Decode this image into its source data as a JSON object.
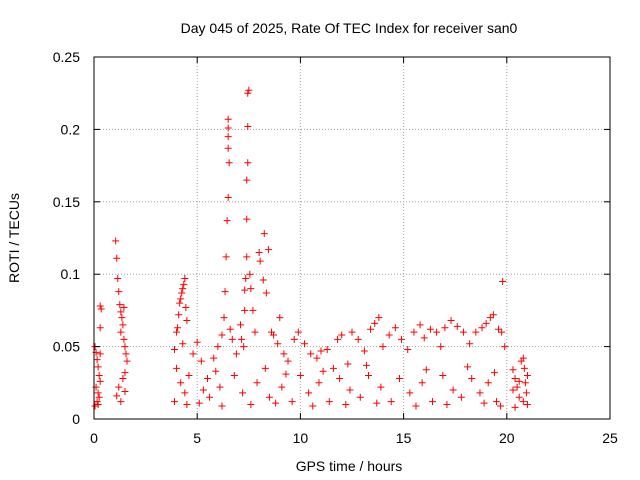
{
  "chart_data": {
    "type": "scatter",
    "title": "Day 045 of 2025, Rate Of TEC Index for receiver san0",
    "xlabel": "GPS time / hours",
    "ylabel": "ROTI / TECUs",
    "xlim": [
      0,
      25
    ],
    "ylim": [
      0,
      0.25
    ],
    "x_ticks": [
      0,
      5,
      10,
      15,
      20,
      25
    ],
    "y_ticks": [
      0,
      0.05,
      0.1,
      0.15,
      0.2,
      0.25
    ],
    "x_tick_labels": [
      "0",
      "5",
      "10",
      "15",
      "20",
      "25"
    ],
    "y_tick_labels": [
      "0",
      "0.05",
      "0.1",
      "0.15",
      "0.2",
      "0.25"
    ],
    "grid": true,
    "marker": "plus",
    "color": "#ff0000",
    "series": [
      {
        "points": [
          [
            0.05,
            0.05
          ],
          [
            0.1,
            0.046
          ],
          [
            0.15,
            0.041
          ],
          [
            0.2,
            0.036
          ],
          [
            0.25,
            0.03
          ],
          [
            0.1,
            0.022
          ],
          [
            0.2,
            0.018
          ],
          [
            0.15,
            0.012
          ],
          [
            0.05,
            0.009
          ],
          [
            0.25,
            0.015
          ],
          [
            0.3,
            0.078
          ],
          [
            0.35,
            0.076
          ],
          [
            0.3,
            0.063
          ],
          [
            0.3,
            0.045
          ],
          [
            0.3,
            0.026
          ],
          [
            0.2,
            0.01
          ],
          [
            1.05,
            0.123
          ],
          [
            1.1,
            0.111
          ],
          [
            1.15,
            0.097
          ],
          [
            1.2,
            0.088
          ],
          [
            1.25,
            0.079
          ],
          [
            1.3,
            0.074
          ],
          [
            1.35,
            0.07
          ],
          [
            1.4,
            0.065
          ],
          [
            1.45,
            0.077
          ],
          [
            1.3,
            0.06
          ],
          [
            1.45,
            0.055
          ],
          [
            1.5,
            0.05
          ],
          [
            1.55,
            0.045
          ],
          [
            1.6,
            0.04
          ],
          [
            1.5,
            0.032
          ],
          [
            1.4,
            0.028
          ],
          [
            1.2,
            0.022
          ],
          [
            1.1,
            0.016
          ],
          [
            1.3,
            0.012
          ],
          [
            1.5,
            0.019
          ],
          [
            3.9,
            0.048
          ],
          [
            4.0,
            0.06
          ],
          [
            4.05,
            0.063
          ],
          [
            4.1,
            0.072
          ],
          [
            4.15,
            0.08
          ],
          [
            4.2,
            0.083
          ],
          [
            4.25,
            0.087
          ],
          [
            4.3,
            0.09
          ],
          [
            4.35,
            0.093
          ],
          [
            4.4,
            0.097
          ],
          [
            4.45,
            0.077
          ],
          [
            4.5,
            0.068
          ],
          [
            4.3,
            0.052
          ],
          [
            4.0,
            0.035
          ],
          [
            4.2,
            0.025
          ],
          [
            4.4,
            0.018
          ],
          [
            3.9,
            0.012
          ],
          [
            4.6,
            0.03
          ],
          [
            4.8,
            0.045
          ],
          [
            5.0,
            0.053
          ],
          [
            5.2,
            0.04
          ],
          [
            5.5,
            0.028
          ],
          [
            5.8,
            0.042
          ],
          [
            6.0,
            0.05
          ],
          [
            6.2,
            0.058
          ],
          [
            6.3,
            0.07
          ],
          [
            6.35,
            0.088
          ],
          [
            6.4,
            0.112
          ],
          [
            6.45,
            0.137
          ],
          [
            6.5,
            0.153
          ],
          [
            6.55,
            0.177
          ],
          [
            6.5,
            0.187
          ],
          [
            6.5,
            0.195
          ],
          [
            6.5,
            0.201
          ],
          [
            6.5,
            0.207
          ],
          [
            6.6,
            0.062
          ],
          [
            6.7,
            0.055
          ],
          [
            6.9,
            0.045
          ],
          [
            7.1,
            0.065
          ],
          [
            7.15,
            0.055
          ],
          [
            7.25,
            0.05
          ],
          [
            7.3,
            0.075
          ],
          [
            7.3,
            0.089
          ],
          [
            7.35,
            0.097
          ],
          [
            7.4,
            0.112
          ],
          [
            7.4,
            0.138
          ],
          [
            7.4,
            0.165
          ],
          [
            7.45,
            0.177
          ],
          [
            7.45,
            0.202
          ],
          [
            7.45,
            0.225
          ],
          [
            7.5,
            0.227
          ],
          [
            7.55,
            0.1
          ],
          [
            7.6,
            0.09
          ],
          [
            7.7,
            0.075
          ],
          [
            7.8,
            0.06
          ],
          [
            8.0,
            0.115
          ],
          [
            8.05,
            0.109
          ],
          [
            8.2,
            0.096
          ],
          [
            8.25,
            0.128
          ],
          [
            8.35,
            0.087
          ],
          [
            8.45,
            0.117
          ],
          [
            8.6,
            0.06
          ],
          [
            8.7,
            0.058
          ],
          [
            8.9,
            0.052
          ],
          [
            9.0,
            0.07
          ],
          [
            9.2,
            0.045
          ],
          [
            9.4,
            0.04
          ],
          [
            9.7,
            0.055
          ],
          [
            9.9,
            0.06
          ],
          [
            10.2,
            0.052
          ],
          [
            10.5,
            0.045
          ],
          [
            10.8,
            0.042
          ],
          [
            11.0,
            0.047
          ],
          [
            11.3,
            0.048
          ],
          [
            11.6,
            0.035
          ],
          [
            11.8,
            0.055
          ],
          [
            12.0,
            0.058
          ],
          [
            12.3,
            0.038
          ],
          [
            12.5,
            0.06
          ],
          [
            12.8,
            0.055
          ],
          [
            13.1,
            0.047
          ],
          [
            13.4,
            0.062
          ],
          [
            13.6,
            0.066
          ],
          [
            13.8,
            0.07
          ],
          [
            14.0,
            0.05
          ],
          [
            14.3,
            0.058
          ],
          [
            14.6,
            0.063
          ],
          [
            14.9,
            0.055
          ],
          [
            15.2,
            0.048
          ],
          [
            15.5,
            0.06
          ],
          [
            15.8,
            0.065
          ],
          [
            16.0,
            0.056
          ],
          [
            16.3,
            0.062
          ],
          [
            16.6,
            0.06
          ],
          [
            16.8,
            0.05
          ],
          [
            17.0,
            0.063
          ],
          [
            17.3,
            0.068
          ],
          [
            17.6,
            0.064
          ],
          [
            17.9,
            0.06
          ],
          [
            18.2,
            0.052
          ],
          [
            18.5,
            0.06
          ],
          [
            18.8,
            0.063
          ],
          [
            19.0,
            0.066
          ],
          [
            19.2,
            0.07
          ],
          [
            19.35,
            0.072
          ],
          [
            19.6,
            0.062
          ],
          [
            19.75,
            0.06
          ],
          [
            19.8,
            0.095
          ],
          [
            19.9,
            0.05
          ],
          [
            5.3,
            0.02
          ],
          [
            5.6,
            0.015
          ],
          [
            6.1,
            0.022
          ],
          [
            6.8,
            0.03
          ],
          [
            7.2,
            0.018
          ],
          [
            7.9,
            0.025
          ],
          [
            8.5,
            0.015
          ],
          [
            9.1,
            0.022
          ],
          [
            9.6,
            0.012
          ],
          [
            10.0,
            0.03
          ],
          [
            10.4,
            0.018
          ],
          [
            10.9,
            0.025
          ],
          [
            11.4,
            0.012
          ],
          [
            11.9,
            0.028
          ],
          [
            12.4,
            0.02
          ],
          [
            12.9,
            0.015
          ],
          [
            13.3,
            0.03
          ],
          [
            13.9,
            0.022
          ],
          [
            14.4,
            0.012
          ],
          [
            14.8,
            0.028
          ],
          [
            15.3,
            0.018
          ],
          [
            15.9,
            0.025
          ],
          [
            16.4,
            0.012
          ],
          [
            16.9,
            0.03
          ],
          [
            17.4,
            0.02
          ],
          [
            17.8,
            0.015
          ],
          [
            18.3,
            0.028
          ],
          [
            18.7,
            0.018
          ],
          [
            19.1,
            0.025
          ],
          [
            19.5,
            0.012
          ],
          [
            4.5,
            0.01
          ],
          [
            5.1,
            0.011
          ],
          [
            6.2,
            0.009
          ],
          [
            7.6,
            0.01
          ],
          [
            8.8,
            0.011
          ],
          [
            10.6,
            0.009
          ],
          [
            12.2,
            0.01
          ],
          [
            13.7,
            0.011
          ],
          [
            15.6,
            0.009
          ],
          [
            17.1,
            0.01
          ],
          [
            18.9,
            0.011
          ],
          [
            19.7,
            0.009
          ],
          [
            5.9,
            0.033
          ],
          [
            8.3,
            0.035
          ],
          [
            11.1,
            0.033
          ],
          [
            13.2,
            0.037
          ],
          [
            16.1,
            0.034
          ],
          [
            18.1,
            0.036
          ],
          [
            19.4,
            0.032
          ],
          [
            9.3,
            0.031
          ],
          [
            20.3,
            0.034
          ],
          [
            20.4,
            0.028
          ],
          [
            20.5,
            0.022
          ],
          [
            20.6,
            0.015
          ],
          [
            20.7,
            0.04
          ],
          [
            20.8,
            0.042
          ],
          [
            20.85,
            0.035
          ],
          [
            20.9,
            0.025
          ],
          [
            20.95,
            0.018
          ],
          [
            21.0,
            0.01
          ],
          [
            20.4,
            0.008
          ],
          [
            20.6,
            0.026
          ],
          [
            20.8,
            0.012
          ],
          [
            21.0,
            0.03
          ],
          [
            20.3,
            0.02
          ]
        ]
      }
    ]
  }
}
